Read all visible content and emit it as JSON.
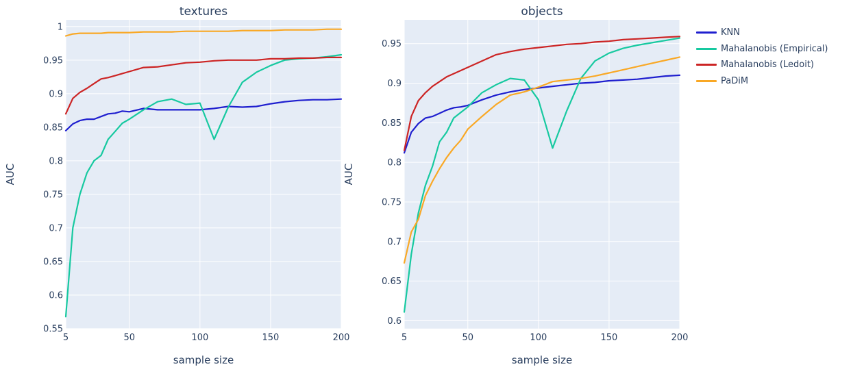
{
  "chart_data": [
    {
      "type": "line",
      "title": "textures",
      "xlabel": "sample size",
      "ylabel": "AUC",
      "xlim": [
        5,
        200
      ],
      "ylim": [
        0.55,
        1.01
      ],
      "xticks": [
        5,
        50,
        100,
        150,
        200
      ],
      "yticks": [
        0.55,
        0.6,
        0.65,
        0.7,
        0.75,
        0.8,
        0.85,
        0.9,
        0.95,
        1
      ],
      "ytick_labels": [
        "0.55",
        "0.6",
        "0.65",
        "0.7",
        "0.75",
        "0.8",
        "0.85",
        "0.9",
        "0.95",
        "1"
      ],
      "grid": true,
      "series": [
        {
          "name": "KNN",
          "color": "#1f1fcf",
          "x": [
            5,
            10,
            15,
            20,
            25,
            30,
            35,
            40,
            45,
            50,
            60,
            70,
            80,
            90,
            100,
            110,
            120,
            130,
            140,
            150,
            160,
            170,
            180,
            190,
            200
          ],
          "y": [
            0.845,
            0.855,
            0.86,
            0.862,
            0.862,
            0.866,
            0.87,
            0.871,
            0.874,
            0.873,
            0.878,
            0.876,
            0.876,
            0.876,
            0.876,
            0.878,
            0.881,
            0.88,
            0.881,
            0.885,
            0.888,
            0.89,
            0.891,
            0.891,
            0.892
          ]
        },
        {
          "name": "Mahalanobis (Empirical)",
          "color": "#17c9a0",
          "x": [
            5,
            10,
            15,
            20,
            25,
            30,
            35,
            40,
            45,
            50,
            60,
            70,
            80,
            90,
            100,
            110,
            120,
            130,
            140,
            150,
            160,
            170,
            180,
            190,
            200
          ],
          "y": [
            0.568,
            0.7,
            0.75,
            0.782,
            0.8,
            0.808,
            0.832,
            0.844,
            0.856,
            0.862,
            0.876,
            0.888,
            0.892,
            0.884,
            0.886,
            0.832,
            0.88,
            0.917,
            0.932,
            0.942,
            0.95,
            0.952,
            0.953,
            0.955,
            0.958
          ]
        },
        {
          "name": "Mahalanobis (Ledoit)",
          "color": "#cc2424",
          "x": [
            5,
            10,
            15,
            20,
            25,
            30,
            35,
            40,
            45,
            50,
            60,
            70,
            80,
            90,
            100,
            110,
            120,
            130,
            140,
            150,
            160,
            170,
            180,
            190,
            200
          ],
          "y": [
            0.87,
            0.893,
            0.902,
            0.908,
            0.915,
            0.922,
            0.924,
            0.927,
            0.93,
            0.933,
            0.939,
            0.94,
            0.943,
            0.946,
            0.947,
            0.949,
            0.95,
            0.95,
            0.95,
            0.952,
            0.952,
            0.953,
            0.953,
            0.954,
            0.954
          ]
        },
        {
          "name": "PaDiM",
          "color": "#f9a825",
          "x": [
            5,
            10,
            15,
            20,
            25,
            30,
            35,
            40,
            45,
            50,
            60,
            70,
            80,
            90,
            100,
            110,
            120,
            130,
            140,
            150,
            160,
            170,
            180,
            190,
            200
          ],
          "y": [
            0.986,
            0.989,
            0.99,
            0.99,
            0.99,
            0.99,
            0.991,
            0.991,
            0.991,
            0.991,
            0.992,
            0.992,
            0.992,
            0.993,
            0.993,
            0.993,
            0.993,
            0.994,
            0.994,
            0.994,
            0.995,
            0.995,
            0.995,
            0.996,
            0.996
          ]
        }
      ]
    },
    {
      "type": "line",
      "title": "objects",
      "xlabel": "sample size",
      "ylabel": "AUC",
      "xlim": [
        5,
        200
      ],
      "ylim": [
        0.59,
        0.98
      ],
      "xticks": [
        5,
        50,
        100,
        150,
        200
      ],
      "yticks": [
        0.6,
        0.65,
        0.7,
        0.75,
        0.8,
        0.85,
        0.9,
        0.95
      ],
      "ytick_labels": [
        "0.6",
        "0.65",
        "0.7",
        "0.75",
        "0.8",
        "0.85",
        "0.9",
        "0.95"
      ],
      "grid": true,
      "series": [
        {
          "name": "KNN",
          "color": "#1f1fcf",
          "x": [
            5,
            10,
            15,
            20,
            25,
            30,
            35,
            40,
            45,
            50,
            60,
            70,
            80,
            90,
            100,
            110,
            120,
            130,
            140,
            150,
            160,
            170,
            180,
            190,
            200
          ],
          "y": [
            0.812,
            0.838,
            0.849,
            0.856,
            0.858,
            0.862,
            0.866,
            0.869,
            0.87,
            0.872,
            0.879,
            0.885,
            0.889,
            0.892,
            0.894,
            0.896,
            0.898,
            0.9,
            0.901,
            0.903,
            0.904,
            0.905,
            0.907,
            0.909,
            0.91
          ]
        },
        {
          "name": "Mahalanobis (Empirical)",
          "color": "#17c9a0",
          "x": [
            5,
            10,
            15,
            20,
            25,
            30,
            35,
            40,
            45,
            50,
            60,
            70,
            80,
            90,
            100,
            110,
            120,
            130,
            140,
            150,
            160,
            170,
            180,
            190,
            200
          ],
          "y": [
            0.611,
            0.684,
            0.736,
            0.771,
            0.795,
            0.826,
            0.838,
            0.856,
            0.863,
            0.87,
            0.888,
            0.898,
            0.906,
            0.904,
            0.879,
            0.818,
            0.865,
            0.906,
            0.928,
            0.938,
            0.944,
            0.948,
            0.951,
            0.954,
            0.957
          ]
        },
        {
          "name": "Mahalanobis (Ledoit)",
          "color": "#cc2424",
          "x": [
            5,
            10,
            15,
            20,
            25,
            30,
            35,
            40,
            45,
            50,
            60,
            70,
            80,
            90,
            100,
            110,
            120,
            130,
            140,
            150,
            160,
            170,
            180,
            190,
            200
          ],
          "y": [
            0.815,
            0.858,
            0.878,
            0.888,
            0.896,
            0.902,
            0.908,
            0.912,
            0.916,
            0.92,
            0.928,
            0.936,
            0.94,
            0.943,
            0.945,
            0.947,
            0.949,
            0.95,
            0.952,
            0.953,
            0.955,
            0.956,
            0.957,
            0.958,
            0.959
          ]
        },
        {
          "name": "PaDiM",
          "color": "#f9a825",
          "x": [
            5,
            10,
            15,
            20,
            25,
            30,
            35,
            40,
            45,
            50,
            60,
            70,
            80,
            90,
            100,
            110,
            120,
            130,
            140,
            150,
            160,
            170,
            180,
            190,
            200
          ],
          "y": [
            0.673,
            0.712,
            0.728,
            0.758,
            0.776,
            0.792,
            0.806,
            0.818,
            0.828,
            0.842,
            0.858,
            0.873,
            0.885,
            0.889,
            0.895,
            0.902,
            0.904,
            0.906,
            0.909,
            0.913,
            0.917,
            0.921,
            0.925,
            0.929,
            0.933
          ]
        }
      ]
    }
  ],
  "legend": [
    {
      "label": "KNN",
      "color": "#1f1fcf"
    },
    {
      "label": "Mahalanobis (Empirical)",
      "color": "#17c9a0"
    },
    {
      "label": "Mahalanobis (Ledoit)",
      "color": "#cc2424"
    },
    {
      "label": "PaDiM",
      "color": "#f9a825"
    }
  ]
}
